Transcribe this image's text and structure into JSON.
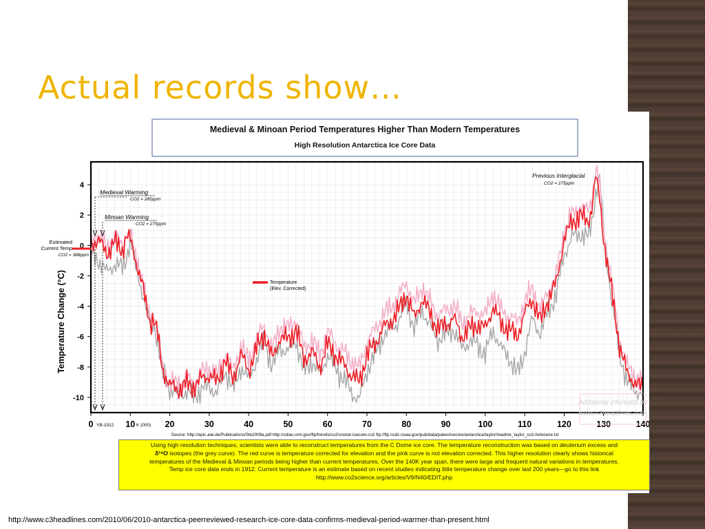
{
  "slide": {
    "title": "Actual records show…",
    "url": "http://www.c3headlines.com/2010/06/2010-antarctica-peerreviewed-research-ice-core-data-confirms-medieval-period-warmer-than-present.html",
    "accent_color": "#f0b400"
  },
  "figure_header": {
    "title": "Medieval & Minoan Period Temperatures Higher Than Modern Temperatures",
    "subtitle": "High Resolution Antarctica Ice Core Data"
  },
  "annotations": {
    "estimated_1": "Estimated",
    "estimated_2": "Current Temp",
    "estimated_3": "CO2 = 388ppm",
    "medieval": "Medieval Warming",
    "medieval_co2": "CO2 = 285ppm",
    "minoan": "Minoan Warming",
    "minoan_co2": "CO2 = 275ppm",
    "interglacial": "Previous Interglacial",
    "interglacial_co2": "CO2 = 275ppm",
    "legend_1": "Temperature",
    "legend_2": "(Elev. Corrected)",
    "yb": "YB-1912",
    "kunit": "K (000)",
    "watermark_1": "Additional info/edits by",
    "watermark_2": "www.c3headlines.com",
    "source": "Source: http://epic.awi.de/Publications/Ste2009a.pdf   http://cdiac.ornl.gov/ftp/trends/co2/vostok.icecore.co2   ftp://ftp.ncdc.noaa.gov/pub/data/paleo/icecore/antarctica/taylor/readme_taylor_co2-holocene.txt"
  },
  "caption": {
    "line1": "Using high resolution techniques, scientists were able to reconstruct temperatures from the C Dome ice core. The temperature reconstruction was based on deuterium excess and",
    "line2_symbol": "δ¹⁸O",
    "line2": " isotopes (the grey curve). The red curve is temperature corrected for elevation and the pink curve is not elevation corrected. This higher resolution clearly shows historical",
    "line3": "temperatures of the Medieval & Minoan periods being higher than current temperatures. Over the 140K year span, there were large and frequent natural variations in temperatures.",
    "line4": "Temp ice core data ends in 1912. Current temperature is an estimate based on recent studies indicating little temperature change over last 200 years—go to this link",
    "line5": "http://www.co2science.org/articles/V9/N40/EDIT.php"
  },
  "chart_data": {
    "type": "line",
    "xlabel": "",
    "ylabel": "Temperature Change (°C)",
    "xlim": [
      0,
      140
    ],
    "ylim": [
      -11,
      5.5
    ],
    "x_ticks": [
      "0",
      "10",
      "20",
      "30",
      "40",
      "50",
      "60",
      "70",
      "80",
      "90",
      "100",
      "110",
      "120",
      "130",
      "140"
    ],
    "y_ticks": [
      "4",
      "2",
      "0",
      "-2",
      "-4",
      "-6",
      "-8",
      "-10"
    ],
    "grid": true,
    "series": [
      {
        "name": "Temperature (Elev. Corrected)",
        "color": "#ee1c24",
        "x": [
          0,
          2,
          4,
          6,
          8,
          9,
          10,
          11,
          12,
          13,
          14,
          15,
          16,
          17,
          18,
          20,
          22,
          24,
          26,
          28,
          30,
          32,
          34,
          36,
          38,
          40,
          42,
          44,
          46,
          48,
          50,
          52,
          54,
          56,
          58,
          60,
          62,
          64,
          66,
          68,
          70,
          72,
          74,
          76,
          78,
          80,
          82,
          84,
          86,
          88,
          90,
          92,
          94,
          96,
          98,
          100,
          102,
          104,
          106,
          108,
          110,
          112,
          114,
          116,
          118,
          120,
          122,
          124,
          126,
          127,
          128,
          129,
          130,
          132,
          134,
          136,
          138,
          140
        ],
        "y": [
          0.2,
          0.3,
          -0.5,
          0.2,
          -0.3,
          0.6,
          0.3,
          -0.6,
          -1.5,
          -2.5,
          -4.0,
          -5.0,
          -4.8,
          -6.0,
          -8.0,
          -9.2,
          -9.5,
          -9.1,
          -9.3,
          -8.8,
          -8.5,
          -9.0,
          -7.5,
          -8.8,
          -7.2,
          -8.2,
          -6.8,
          -5.8,
          -7.5,
          -6.0,
          -6.2,
          -5.5,
          -7.5,
          -7.0,
          -8.0,
          -6.5,
          -7.2,
          -7.8,
          -8.5,
          -9.0,
          -7.2,
          -6.5,
          -5.5,
          -5.0,
          -4.3,
          -3.2,
          -4.8,
          -3.5,
          -4.5,
          -5.5,
          -5.2,
          -4.8,
          -6.0,
          -5.5,
          -5.2,
          -5.5,
          -4.0,
          -5.2,
          -5.5,
          -6.0,
          -4.5,
          -3.5,
          -5.0,
          -3.5,
          -2.5,
          0.5,
          1.5,
          2.0,
          1.5,
          2.5,
          4.5,
          3.0,
          0.5,
          -3.0,
          -6.5,
          -8.5,
          -9.0,
          -9.5
        ]
      },
      {
        "name": "Not elevation corrected",
        "color": "#f5b0c8",
        "x": [
          0,
          2,
          4,
          6,
          8,
          9,
          10,
          11,
          12,
          13,
          14,
          15,
          16,
          17,
          18,
          20,
          22,
          24,
          26,
          28,
          30,
          32,
          34,
          36,
          38,
          40,
          42,
          44,
          46,
          48,
          50,
          52,
          54,
          56,
          58,
          60,
          62,
          64,
          66,
          68,
          70,
          72,
          74,
          76,
          78,
          80,
          82,
          84,
          86,
          88,
          90,
          92,
          94,
          96,
          98,
          100,
          102,
          104,
          106,
          108,
          110,
          112,
          114,
          116,
          118,
          120,
          122,
          124,
          126,
          127,
          128,
          129,
          130,
          132,
          134,
          136,
          138,
          140
        ],
        "y": [
          0.4,
          0.6,
          -0.2,
          0.5,
          0.0,
          1.0,
          0.6,
          -0.3,
          -1.2,
          -2.2,
          -3.8,
          -4.7,
          -4.5,
          -5.8,
          -7.8,
          -9.0,
          -9.2,
          -8.8,
          -9.0,
          -8.4,
          -8.1,
          -8.6,
          -7.0,
          -8.3,
          -6.6,
          -7.6,
          -6.2,
          -5.2,
          -6.9,
          -5.3,
          -5.5,
          -4.8,
          -6.8,
          -6.2,
          -7.2,
          -5.7,
          -6.4,
          -7.0,
          -7.6,
          -8.1,
          -6.3,
          -5.6,
          -4.6,
          -4.1,
          -3.4,
          -2.4,
          -3.9,
          -2.7,
          -3.7,
          -4.6,
          -4.3,
          -3.9,
          -5.1,
          -4.6,
          -4.3,
          -4.6,
          -3.1,
          -4.3,
          -4.6,
          -5.1,
          -3.7,
          -2.8,
          -4.3,
          -2.9,
          -2.0,
          1.0,
          2.0,
          2.6,
          2.2,
          3.2,
          5.0,
          3.8,
          1.2,
          -2.4,
          -6.0,
          -8.0,
          -8.6,
          -9.2
        ]
      },
      {
        "name": "δ18O isotopes (grey curve)",
        "color": "#a6a6a6",
        "x": [
          0,
          2,
          4,
          6,
          8,
          9,
          10,
          11,
          12,
          13,
          14,
          15,
          16,
          17,
          18,
          20,
          22,
          24,
          26,
          28,
          30,
          32,
          34,
          36,
          38,
          40,
          42,
          44,
          46,
          48,
          50,
          52,
          54,
          56,
          58,
          60,
          62,
          64,
          66,
          68,
          70,
          72,
          74,
          76,
          78,
          80,
          82,
          84,
          86,
          88,
          90,
          92,
          94,
          96,
          98,
          100,
          102,
          104,
          106,
          108,
          110,
          112,
          114,
          116,
          118,
          120,
          122,
          124,
          126,
          127,
          128,
          129,
          130,
          132,
          134,
          136,
          138,
          140
        ],
        "y": [
          -0.5,
          -1.0,
          -1.8,
          -1.2,
          -1.5,
          -0.8,
          0.5,
          -1.0,
          -2.0,
          -3.0,
          -4.2,
          -5.2,
          -5.2,
          -6.3,
          -8.3,
          -9.4,
          -9.8,
          -9.6,
          -9.9,
          -9.5,
          -9.2,
          -9.8,
          -8.2,
          -9.5,
          -8.0,
          -8.8,
          -7.5,
          -6.3,
          -8.0,
          -6.7,
          -7.0,
          -6.2,
          -8.3,
          -7.6,
          -8.5,
          -7.2,
          -8.0,
          -8.8,
          -9.6,
          -10.2,
          -8.2,
          -7.2,
          -6.0,
          -5.5,
          -5.0,
          -3.6,
          -5.5,
          -4.2,
          -5.3,
          -6.2,
          -5.8,
          -5.5,
          -6.8,
          -6.3,
          -6.5,
          -7.2,
          -5.5,
          -6.8,
          -7.3,
          -8.5,
          -7.0,
          -4.8,
          -5.8,
          -4.2,
          -3.3,
          -0.5,
          0.5,
          0.8,
          0.5,
          1.5,
          3.5,
          4.5,
          1.0,
          -3.5,
          -7.0,
          -9.0,
          -9.5,
          -9.8
        ]
      }
    ]
  }
}
